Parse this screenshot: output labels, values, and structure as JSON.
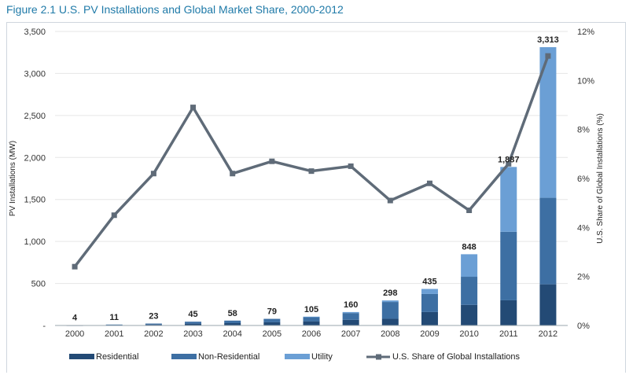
{
  "figure_title": "Figure 2.1  U.S. PV Installations and Global Market Share, 2000-2012",
  "chart_data": {
    "type": "bar",
    "stacked": true,
    "categories": [
      "2000",
      "2001",
      "2002",
      "2003",
      "2004",
      "2005",
      "2006",
      "2007",
      "2008",
      "2009",
      "2010",
      "2011",
      "2012"
    ],
    "totals": [
      4,
      11,
      23,
      45,
      58,
      79,
      105,
      160,
      298,
      435,
      848,
      1887,
      3313
    ],
    "total_labels": [
      "4",
      "11",
      "23",
      "45",
      "58",
      "79",
      "105",
      "160",
      "298",
      "435",
      "848",
      "1,887",
      "3,313"
    ],
    "series": [
      {
        "name": "Residential",
        "color": "#234a75",
        "values": [
          2,
          5,
          12,
          22,
          28,
          38,
          50,
          68,
          80,
          160,
          245,
          300,
          490
        ]
      },
      {
        "name": "Non-Residential",
        "color": "#3d6fa3",
        "values": [
          2,
          6,
          11,
          23,
          30,
          41,
          50,
          80,
          200,
          215,
          335,
          815,
          1030
        ]
      },
      {
        "name": "Utility",
        "color": "#6b9fd5",
        "values": [
          0,
          0,
          0,
          0,
          0,
          0,
          5,
          12,
          18,
          60,
          268,
          772,
          1793
        ]
      }
    ],
    "line_series": {
      "name": "U.S. Share of Global Installations",
      "color": "#5f6b78",
      "axis": "right",
      "values": [
        2.4,
        4.5,
        6.2,
        8.9,
        6.2,
        6.7,
        6.3,
        6.5,
        5.1,
        5.8,
        4.7,
        6.6,
        11.0
      ]
    },
    "ylabel": "PV Installations (MW)",
    "y2label": "U.S. Share of Global Installations (%)",
    "ylim": [
      0,
      3500
    ],
    "yticks": [
      "3,500",
      "3,000",
      "2,500",
      "2,000",
      "1,500",
      "1,000",
      "500",
      "-"
    ],
    "y2lim": [
      0,
      12
    ],
    "y2ticks": [
      "12%",
      "10%",
      "8%",
      "6%",
      "4%",
      "2%",
      "0%"
    ],
    "legend_position": "bottom"
  }
}
